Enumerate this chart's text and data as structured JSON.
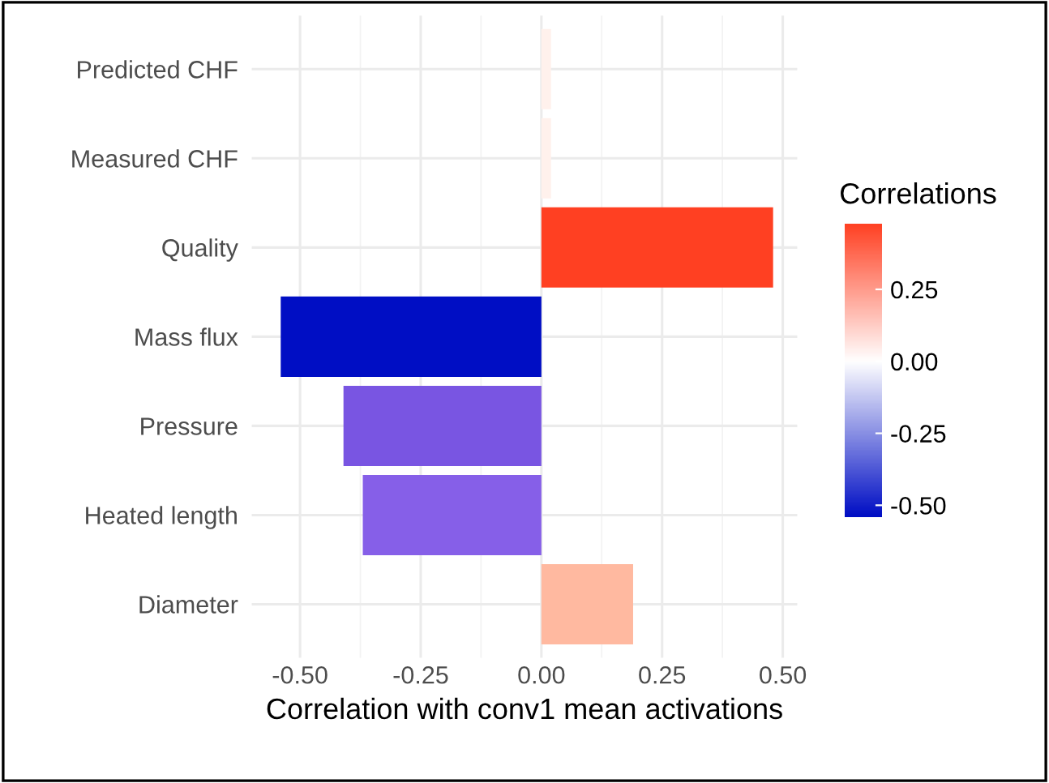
{
  "chart_data": {
    "type": "bar",
    "orientation": "horizontal",
    "xlabel": "Correlation with conv1 mean activations",
    "legend_title": "Correlations",
    "categories": [
      "Predicted CHF",
      "Measured CHF",
      "Quality",
      "Mass flux",
      "Pressure",
      "Heated length",
      "Diameter"
    ],
    "values": [
      0.02,
      0.02,
      0.48,
      -0.54,
      -0.41,
      -0.37,
      0.19
    ],
    "colors": [
      "#fff1ec",
      "#fff1ec",
      "#ff4022",
      "#000ec4",
      "#7955e2",
      "#865fe8",
      "#ffb9a0"
    ],
    "xlim": [
      -0.6,
      0.53
    ],
    "xticks": [
      {
        "value": -0.5,
        "label": "-0.50"
      },
      {
        "value": -0.25,
        "label": "-0.25"
      },
      {
        "value": 0,
        "label": "0.00"
      },
      {
        "value": 0.25,
        "label": "0.25"
      },
      {
        "value": 0.5,
        "label": "0.50"
      }
    ],
    "clim": [
      -0.54,
      0.48
    ],
    "cticks": [
      {
        "value": -0.5,
        "label": "-0.50"
      },
      {
        "value": -0.25,
        "label": "-0.25"
      },
      {
        "value": 0,
        "label": "0.00"
      },
      {
        "value": 0.25,
        "label": "0.25"
      }
    ],
    "grid": true
  }
}
